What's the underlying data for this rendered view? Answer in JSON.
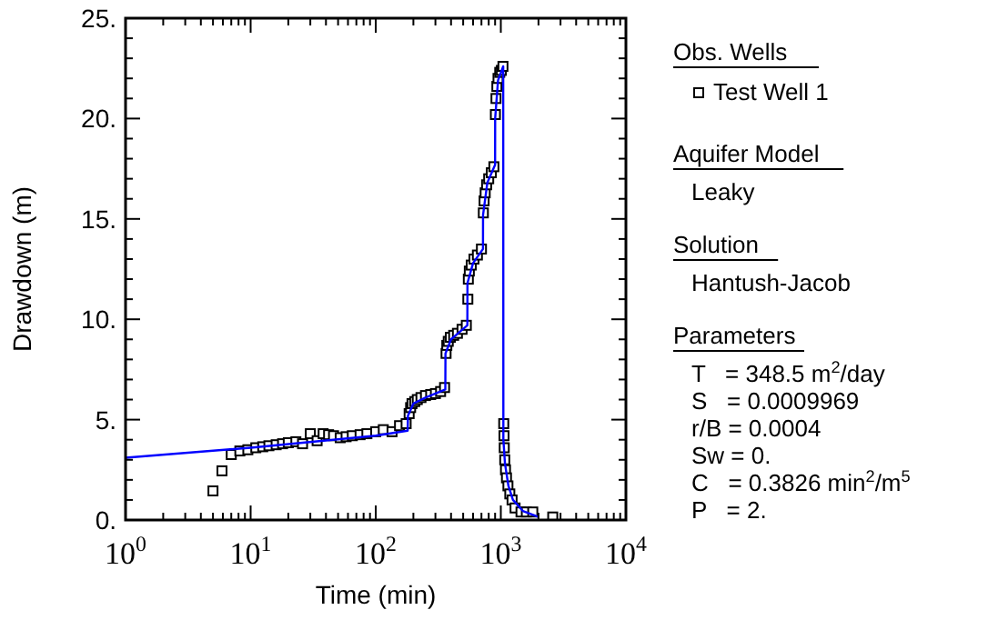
{
  "chart_data": {
    "type": "scatter",
    "xlabel": "Time (min)",
    "ylabel": "Drawdown (m)",
    "log": "x",
    "grid": false,
    "legend": "right",
    "legend_title": "Obs. Wells",
    "xlim": [
      1,
      10000
    ],
    "xticks": [
      {
        "value": 1,
        "label": "10$^{0}$"
      },
      {
        "value": 10,
        "label": "10$^{1}$"
      },
      {
        "value": 100,
        "label": "10$^{2}$"
      },
      {
        "value": 1000,
        "label": "10$^{3}$"
      },
      {
        "value": 10000,
        "label": "10$^{4}$"
      }
    ],
    "ylim": [
      0,
      25
    ],
    "yticks": [
      {
        "value": 0,
        "label": "0."
      },
      {
        "value": 5,
        "label": "5."
      },
      {
        "value": 10,
        "label": "10."
      },
      {
        "value": 15,
        "label": "15."
      },
      {
        "value": 20,
        "label": "20."
      },
      {
        "value": 25,
        "label": "25."
      }
    ],
    "series": [
      {
        "name": "Test Well 1",
        "color": "#000000",
        "marker": "square",
        "x": [
          5.0,
          5.9,
          7.0,
          8.2,
          9.5,
          11,
          12.5,
          14,
          16,
          18,
          20,
          23,
          26,
          30,
          34,
          38,
          42,
          46,
          52,
          58,
          65,
          75,
          85,
          100,
          115,
          135,
          155,
          175,
          185,
          190,
          195,
          205,
          215,
          230,
          250,
          275,
          300,
          330,
          355,
          365,
          370,
          380,
          395,
          420,
          450,
          490,
          530,
          545,
          550,
          560,
          580,
          610,
          650,
          700,
          725,
          735,
          750,
          770,
          800,
          840,
          880,
          905,
          915,
          930,
          950,
          980,
          1010,
          1040,
          1055,
          1060,
          1065,
          1075,
          1090,
          1110,
          1140,
          1180,
          1230,
          1300,
          1450,
          1600,
          1800,
          2600
        ],
        "values": [
          1.45,
          2.45,
          3.26,
          3.44,
          3.5,
          3.6,
          3.65,
          3.7,
          3.75,
          3.8,
          3.85,
          3.9,
          3.8,
          4.3,
          3.95,
          4.3,
          4.25,
          4.2,
          4.1,
          4.15,
          4.2,
          4.25,
          4.3,
          4.4,
          4.5,
          4.4,
          4.7,
          4.8,
          5.3,
          5.6,
          5.8,
          5.9,
          6.0,
          6.1,
          6.2,
          6.25,
          6.3,
          6.4,
          6.6,
          8.3,
          8.7,
          8.9,
          9.1,
          9.2,
          9.3,
          9.5,
          9.7,
          11.0,
          12.0,
          12.4,
          12.7,
          13.0,
          13.2,
          13.5,
          15.3,
          15.9,
          16.3,
          16.7,
          17.0,
          17.3,
          17.6,
          20.2,
          21.0,
          21.6,
          22.0,
          22.3,
          22.4,
          22.6,
          4.8,
          4.2,
          3.6,
          3.0,
          2.5,
          2.1,
          1.7,
          1.3,
          1.0,
          0.6,
          0.4,
          0.4,
          0.4,
          0.15
        ]
      },
      {
        "type": "line",
        "color": "#0000ff",
        "line_style": "solid",
        "x": [
          1,
          10,
          100,
          180,
          181,
          200,
          250,
          360,
          361,
          400,
          540,
          541,
          600,
          720,
          721,
          780,
          900,
          901,
          950,
          1045,
          1048,
          1080,
          1150,
          1250,
          1500,
          2000
        ],
        "values": [
          3.1,
          3.6,
          4.2,
          4.45,
          5.2,
          5.8,
          6.1,
          6.5,
          8.3,
          9.0,
          9.7,
          11.8,
          12.8,
          13.5,
          15.2,
          16.8,
          17.7,
          20.0,
          21.9,
          22.6,
          4.0,
          2.8,
          1.7,
          1.0,
          0.45,
          0.15
        ]
      }
    ],
    "annotations": [
      "Aquifer Model",
      "Leaky",
      "Solution",
      "Hantush-Jacob",
      "Parameters",
      "T   = 348.5 m$^{2}$/day",
      "S   = 0.0009969",
      "r/B = 0.0004",
      "Sw = 0.",
      "C   = 0.3826 min$^{2}$/m$^{5}$",
      "P   = 2."
    ]
  }
}
